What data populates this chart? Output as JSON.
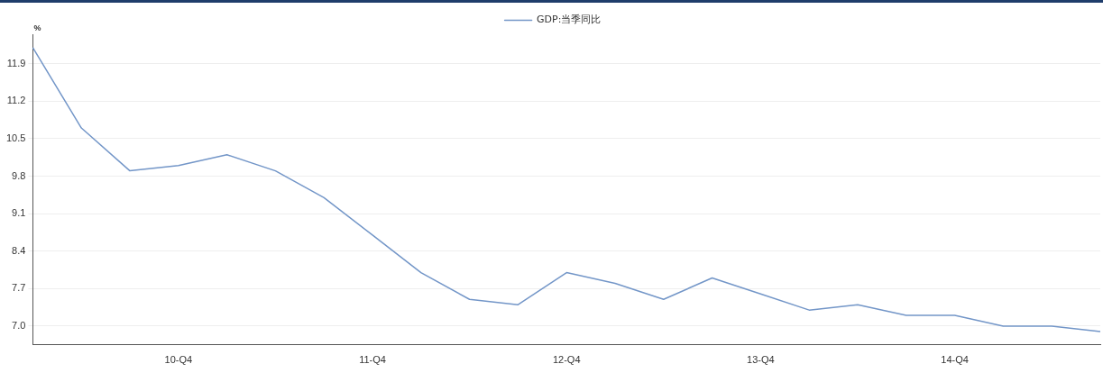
{
  "chart_data": {
    "type": "line",
    "ylabel": "%",
    "categories": [
      null,
      null,
      null,
      "10-Q4",
      null,
      null,
      null,
      "11-Q4",
      null,
      null,
      null,
      "12-Q4",
      null,
      null,
      null,
      "13-Q4",
      null,
      null,
      null,
      "14-Q4",
      null,
      null,
      null
    ],
    "series": [
      {
        "name": "GDP:当季同比",
        "color": "#7396c8",
        "values": [
          12.2,
          10.7,
          9.9,
          10.0,
          10.2,
          9.9,
          9.4,
          8.7,
          8.0,
          7.5,
          7.4,
          8.0,
          7.8,
          7.5,
          7.9,
          7.6,
          7.3,
          7.4,
          7.2,
          7.2,
          7.0,
          7.0,
          6.9
        ]
      }
    ],
    "ylim": [
      6.65,
      12.45
    ],
    "yticks": [
      {
        "value": 7.0,
        "label": "7.0"
      },
      7.7,
      8.4,
      9.1,
      9.8,
      10.5,
      11.2,
      11.9
    ],
    "grid": "y",
    "legend": "top",
    "marker": "none",
    "line_style": "solid"
  }
}
